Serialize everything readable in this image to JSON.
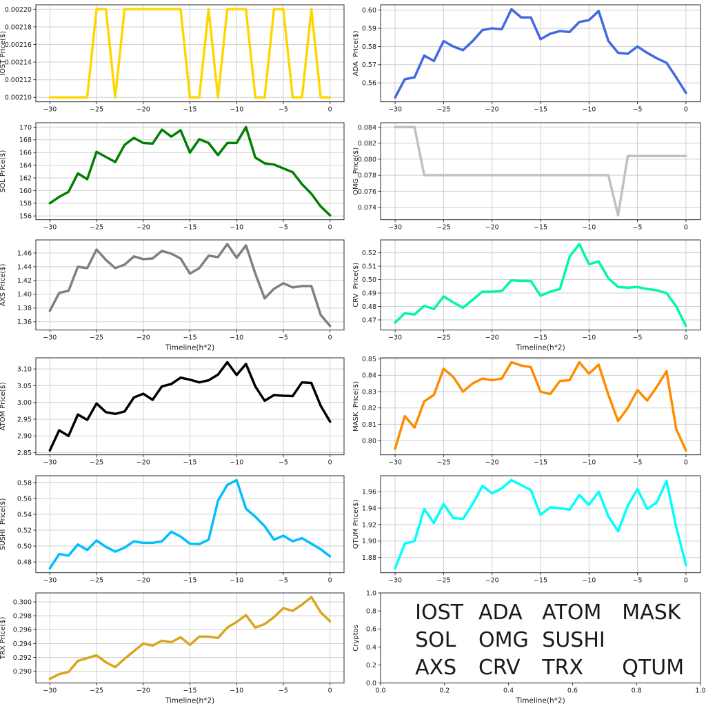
{
  "figure": {
    "xlabel": "Timeline(h*2)",
    "x_ticks": [
      -30,
      -25,
      -20,
      -15,
      -10,
      -5,
      0
    ],
    "x_tick_labels": [
      "−30",
      "−25",
      "−20",
      "−15",
      "−10",
      "−5",
      "0"
    ],
    "grid_color": "#cfcfcf",
    "spine_color": "#2b2b2b",
    "tick_color": "#1a1a1a"
  },
  "chart_data": [
    {
      "type": "line",
      "name": "IOST",
      "ylabel": "IOST Price($)",
      "color": "#FFD700",
      "show_xlabel": false,
      "x_start": -30,
      "y_ticks": [
        0.0021,
        0.00212,
        0.00214,
        0.00216,
        0.00218,
        0.0022
      ],
      "y_tick_labels": [
        "0.00210",
        "0.00212",
        "0.00214",
        "0.00216",
        "0.00218",
        "0.00220"
      ],
      "values": [
        0.0021,
        0.0021,
        0.0021,
        0.0021,
        0.0021,
        0.0022,
        0.0022,
        0.0021,
        0.0022,
        0.0022,
        0.0022,
        0.0022,
        0.0022,
        0.0022,
        0.0022,
        0.0021,
        0.0021,
        0.0022,
        0.0021,
        0.0022,
        0.0022,
        0.0022,
        0.0021,
        0.0021,
        0.0022,
        0.0022,
        0.0021,
        0.0021,
        0.0022,
        0.0021,
        0.0021
      ]
    },
    {
      "type": "line",
      "name": "ADA",
      "ylabel": "ADA  Price($)",
      "color": "#4169E1",
      "show_xlabel": false,
      "x_start": -30,
      "y_ticks": [
        0.56,
        0.57,
        0.58,
        0.59,
        0.6
      ],
      "y_tick_labels": [
        "0.56",
        "0.57",
        "0.58",
        "0.59",
        "0.60"
      ],
      "values": [
        0.552,
        0.562,
        0.563,
        0.575,
        0.572,
        0.583,
        0.58,
        0.578,
        0.583,
        0.589,
        0.59,
        0.5895,
        0.6005,
        0.596,
        0.596,
        0.584,
        0.587,
        0.5885,
        0.588,
        0.5935,
        0.5945,
        0.5995,
        0.583,
        0.5765,
        0.576,
        0.58,
        0.5765,
        0.5735,
        0.571,
        0.563,
        0.5545
      ]
    },
    {
      "type": "line",
      "name": "SOL",
      "ylabel": "SOL Price($)",
      "color": "#008000",
      "show_xlabel": false,
      "x_start": -30,
      "y_ticks": [
        156,
        158,
        160,
        162,
        164,
        166,
        168,
        170
      ],
      "y_tick_labels": [
        "156",
        "158",
        "160",
        "162",
        "164",
        "166",
        "168",
        "170"
      ],
      "values": [
        158.0,
        159.0,
        159.8,
        162.7,
        161.8,
        166.1,
        165.3,
        164.5,
        167.2,
        168.3,
        167.5,
        167.4,
        169.6,
        168.5,
        169.5,
        166.0,
        168.1,
        167.5,
        165.6,
        167.5,
        167.5,
        170.0,
        165.2,
        164.3,
        164.1,
        163.5,
        162.9,
        161.0,
        159.5,
        157.5,
        156.1
      ]
    },
    {
      "type": "line",
      "name": "OMG",
      "ylabel": "OMG  Price($)",
      "color": "#C0C0C0",
      "show_xlabel": false,
      "x_start": -30,
      "y_ticks": [
        0.074,
        0.076,
        0.078,
        0.08,
        0.082,
        0.084
      ],
      "y_tick_labels": [
        "0.074",
        "0.076",
        "0.078",
        "0.080",
        "0.082",
        "0.084"
      ],
      "values": [
        0.084,
        0.084,
        0.084,
        0.078,
        0.078,
        0.078,
        0.078,
        0.078,
        0.078,
        0.078,
        0.078,
        0.078,
        0.078,
        0.078,
        0.078,
        0.078,
        0.078,
        0.078,
        0.078,
        0.078,
        0.078,
        0.078,
        0.078,
        0.073,
        0.0804,
        0.0804,
        0.0804,
        0.0804,
        0.0804,
        0.0804,
        0.0804
      ]
    },
    {
      "type": "line",
      "name": "AXS",
      "ylabel": "AXS Price($)",
      "color": "#808080",
      "show_xlabel": true,
      "x_start": -30,
      "y_ticks": [
        1.36,
        1.38,
        1.4,
        1.42,
        1.44,
        1.46
      ],
      "y_tick_labels": [
        "1.36",
        "1.38",
        "1.40",
        "1.42",
        "1.44",
        "1.46"
      ],
      "values": [
        1.376,
        1.402,
        1.405,
        1.44,
        1.438,
        1.465,
        1.45,
        1.438,
        1.443,
        1.455,
        1.451,
        1.452,
        1.463,
        1.459,
        1.452,
        1.43,
        1.438,
        1.456,
        1.454,
        1.473,
        1.453,
        1.471,
        1.43,
        1.394,
        1.408,
        1.416,
        1.41,
        1.412,
        1.412,
        1.37,
        1.354
      ]
    },
    {
      "type": "line",
      "name": "CRV",
      "ylabel": "CRV  Price($)",
      "color": "#00FA9A",
      "show_xlabel": true,
      "x_start": -30,
      "y_ticks": [
        0.47,
        0.48,
        0.49,
        0.5,
        0.51,
        0.52
      ],
      "y_tick_labels": [
        "0.47",
        "0.48",
        "0.49",
        "0.50",
        "0.51",
        "0.52"
      ],
      "values": [
        0.468,
        0.475,
        0.474,
        0.4805,
        0.478,
        0.4875,
        0.483,
        0.479,
        0.485,
        0.491,
        0.491,
        0.4915,
        0.4995,
        0.499,
        0.499,
        0.488,
        0.491,
        0.493,
        0.517,
        0.5265,
        0.5115,
        0.5135,
        0.501,
        0.4945,
        0.494,
        0.4945,
        0.493,
        0.492,
        0.49,
        0.48,
        0.4655
      ]
    },
    {
      "type": "line",
      "name": "ATOM",
      "ylabel": "ATOM Price($)",
      "color": "#000000",
      "show_xlabel": false,
      "x_start": -30,
      "y_ticks": [
        2.85,
        2.9,
        2.95,
        3.0,
        3.05,
        3.1
      ],
      "y_tick_labels": [
        "2.85",
        "2.90",
        "2.95",
        "3.00",
        "3.05",
        "3.10"
      ],
      "values": [
        2.857,
        2.917,
        2.9,
        2.964,
        2.948,
        2.997,
        2.971,
        2.966,
        2.973,
        3.015,
        3.026,
        3.008,
        3.048,
        3.055,
        3.074,
        3.068,
        3.06,
        3.066,
        3.083,
        3.12,
        3.082,
        3.115,
        3.048,
        3.005,
        3.022,
        3.02,
        3.019,
        3.06,
        3.058,
        2.99,
        2.943
      ]
    },
    {
      "type": "line",
      "name": "MASK",
      "ylabel": "MASK  Price($)",
      "color": "#FF8C00",
      "show_xlabel": false,
      "x_start": -30,
      "y_ticks": [
        0.8,
        0.81,
        0.82,
        0.83,
        0.84,
        0.85
      ],
      "y_tick_labels": [
        "0.80",
        "0.81",
        "0.82",
        "0.83",
        "0.84",
        "0.85"
      ],
      "values": [
        0.795,
        0.815,
        0.808,
        0.824,
        0.828,
        0.844,
        0.839,
        0.83,
        0.835,
        0.838,
        0.837,
        0.838,
        0.848,
        0.846,
        0.845,
        0.83,
        0.8285,
        0.8365,
        0.837,
        0.848,
        0.841,
        0.8465,
        0.828,
        0.812,
        0.82,
        0.831,
        0.8245,
        0.833,
        0.8425,
        0.807,
        0.794
      ]
    },
    {
      "type": "line",
      "name": "SUSHI",
      "ylabel": "SUSHI  Price($)",
      "color": "#00BFFF",
      "show_xlabel": false,
      "x_start": -30,
      "y_ticks": [
        0.48,
        0.5,
        0.52,
        0.54,
        0.56,
        0.58
      ],
      "y_tick_labels": [
        "0.48",
        "0.50",
        "0.52",
        "0.54",
        "0.56",
        "0.58"
      ],
      "values": [
        0.472,
        0.49,
        0.488,
        0.502,
        0.495,
        0.507,
        0.499,
        0.493,
        0.498,
        0.506,
        0.504,
        0.504,
        0.506,
        0.518,
        0.512,
        0.503,
        0.5025,
        0.508,
        0.557,
        0.577,
        0.583,
        0.547,
        0.537,
        0.525,
        0.508,
        0.513,
        0.506,
        0.51,
        0.503,
        0.496,
        0.487
      ]
    },
    {
      "type": "line",
      "name": "QTUM",
      "ylabel": "QTUM Price($)",
      "color": "#00FFFF",
      "show_xlabel": false,
      "x_start": -30,
      "y_ticks": [
        1.88,
        1.9,
        1.92,
        1.94,
        1.96
      ],
      "y_tick_labels": [
        "1.88",
        "1.90",
        "1.92",
        "1.94",
        "1.96"
      ],
      "values": [
        1.867,
        1.897,
        1.9,
        1.939,
        1.922,
        1.945,
        1.928,
        1.927,
        1.945,
        1.967,
        1.958,
        1.964,
        1.974,
        1.968,
        1.962,
        1.932,
        1.941,
        1.94,
        1.938,
        1.956,
        1.944,
        1.96,
        1.93,
        1.912,
        1.943,
        1.963,
        1.939,
        1.947,
        1.973,
        1.917,
        1.871
      ]
    },
    {
      "type": "line",
      "name": "TRX",
      "ylabel": "TRX Price($)",
      "color": "#DAA520",
      "show_xlabel": true,
      "x_start": -30,
      "y_ticks": [
        0.29,
        0.292,
        0.294,
        0.296,
        0.298,
        0.3
      ],
      "y_tick_labels": [
        "0.290",
        "0.292",
        "0.294",
        "0.296",
        "0.298",
        "0.300"
      ],
      "values": [
        0.2889,
        0.2896,
        0.2899,
        0.2915,
        0.2919,
        0.2923,
        0.2913,
        0.2906,
        0.2918,
        0.2929,
        0.294,
        0.2937,
        0.2944,
        0.2942,
        0.2949,
        0.2938,
        0.295,
        0.295,
        0.2948,
        0.2963,
        0.2971,
        0.2981,
        0.2963,
        0.2968,
        0.2978,
        0.2991,
        0.2987,
        0.2996,
        0.3007,
        0.2985,
        0.2972
      ]
    },
    {
      "type": "legend",
      "name": "LEGEND",
      "ylabel": "Cryptos",
      "show_xlabel": true,
      "x_tick_labels": [
        "0.0",
        "0.2",
        "0.4",
        "0.6",
        "0.8",
        "1.0"
      ],
      "y_tick_labels": [
        "0.0",
        "0.2",
        "0.4",
        "0.6",
        "0.8",
        "1.0"
      ],
      "items": [
        {
          "label": "IOST",
          "color": "#FFD700",
          "x": 0.108,
          "y": 0.78
        },
        {
          "label": "ADA",
          "color": "#4169E1",
          "x": 0.306,
          "y": 0.78
        },
        {
          "label": "ATOM",
          "color": "#000000",
          "x": 0.505,
          "y": 0.78
        },
        {
          "label": "MASK",
          "color": "#FF8C00",
          "x": 0.755,
          "y": 0.78
        },
        {
          "label": "SOL",
          "color": "#008000",
          "x": 0.108,
          "y": 0.475
        },
        {
          "label": "OMG",
          "color": "#C0C0C0",
          "x": 0.306,
          "y": 0.475
        },
        {
          "label": "SUSHI",
          "color": "#00BFFF",
          "x": 0.505,
          "y": 0.475
        },
        {
          "label": "AXS",
          "color": "#808080",
          "x": 0.108,
          "y": 0.17
        },
        {
          "label": "CRV",
          "color": "#00FA9A",
          "x": 0.306,
          "y": 0.17
        },
        {
          "label": "TRX",
          "color": "#DAA520",
          "x": 0.505,
          "y": 0.17
        },
        {
          "label": "QTUM",
          "color": "#00FFFF",
          "x": 0.755,
          "y": 0.17
        }
      ]
    }
  ]
}
